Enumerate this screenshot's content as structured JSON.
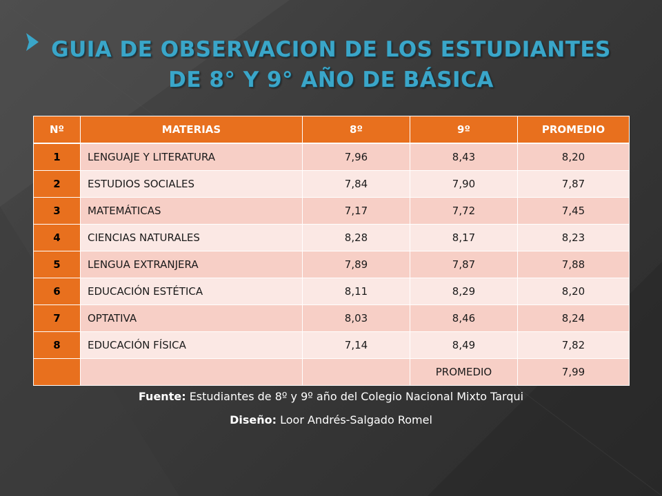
{
  "title": {
    "line1": "GUIA DE OBSERVACION DE LOS ESTUDIANTES",
    "line2": "DE 8° Y 9° AÑO DE BÁSICA"
  },
  "table": {
    "headers": [
      "Nº",
      "MATERIAS",
      "8º",
      "9º",
      "PROMEDIO"
    ],
    "rows": [
      {
        "n": "1",
        "subject": "LENGUAJE Y LITERATURA",
        "g8": "7,96",
        "g9": "8,43",
        "avg": "8,20"
      },
      {
        "n": "2",
        "subject": "ESTUDIOS SOCIALES",
        "g8": "7,84",
        "g9": "7,90",
        "avg": "7,87"
      },
      {
        "n": "3",
        "subject": "MATEMÁTICAS",
        "g8": "7,17",
        "g9": "7,72",
        "avg": "7,45"
      },
      {
        "n": "4",
        "subject": "CIENCIAS NATURALES",
        "g8": "8,28",
        "g9": "8,17",
        "avg": "8,23"
      },
      {
        "n": "5",
        "subject": "LENGUA EXTRANJERA",
        "g8": "7,89",
        "g9": "7,87",
        "avg": "7,88"
      },
      {
        "n": "6",
        "subject": "EDUCACIÓN ESTÉTICA",
        "g8": "8,11",
        "g9": "8,29",
        "avg": "8,20"
      },
      {
        "n": "7",
        "subject": "OPTATIVA",
        "g8": "8,03",
        "g9": "8,46",
        "avg": "8,24"
      },
      {
        "n": "8",
        "subject": "EDUCACIÓN FÍSICA",
        "g8": "7,14",
        "g9": "8,49",
        "avg": "7,82"
      }
    ],
    "summary": {
      "label": "PROMEDIO",
      "value": "7,99"
    }
  },
  "footer": {
    "source_label": "Fuente:",
    "source_text": "Estudiantes de 8º y 9º año del Colegio Nacional Mixto Tarqui",
    "design_label": "Diseño:",
    "design_text": "Loor Andrés-Salgado Romel"
  },
  "colors": {
    "title": "#3aa6c9",
    "header_bg": "#e8701e",
    "row_odd": "#f7cfc6",
    "row_even": "#fbe8e4",
    "background": "#2f2f2f"
  }
}
